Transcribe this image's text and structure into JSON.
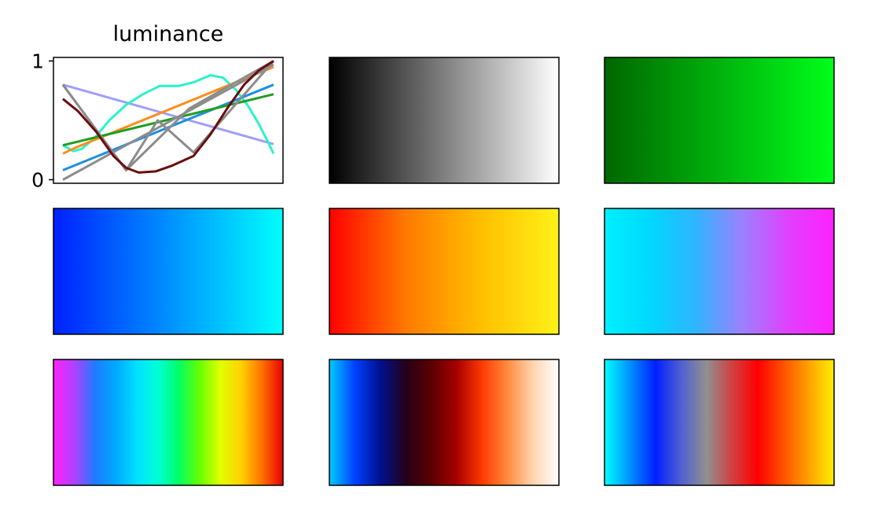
{
  "chart_data": [
    {
      "type": "line",
      "title": "luminance",
      "xlabel": "",
      "ylabel": "",
      "xlim": [
        0,
        1
      ],
      "ylim": [
        -0.03,
        1.03
      ],
      "yticks": [
        {
          "value": 0,
          "label": "0"
        },
        {
          "value": 1,
          "label": "1"
        }
      ],
      "xticks": [],
      "grid": false,
      "series": [
        {
          "color": "#9e9eff",
          "x": [
            0,
            1
          ],
          "y": [
            0.8,
            0.3
          ]
        },
        {
          "color": "#2bf2c8",
          "x": [
            0,
            0.05,
            0.09,
            0.15,
            0.22,
            0.3,
            0.38,
            0.46,
            0.5,
            0.55,
            0.62,
            0.7,
            0.76,
            0.82,
            0.88,
            0.93,
            0.97,
            1.0
          ],
          "y": [
            0.29,
            0.24,
            0.26,
            0.35,
            0.5,
            0.63,
            0.72,
            0.79,
            0.79,
            0.79,
            0.82,
            0.88,
            0.86,
            0.76,
            0.62,
            0.47,
            0.33,
            0.22
          ]
        },
        {
          "color": "#ff8c1a",
          "x": [
            0,
            0.06,
            1.0
          ],
          "y": [
            0.22,
            0.27,
            0.95
          ]
        },
        {
          "color": "#1a8fe6",
          "x": [
            0,
            1.0
          ],
          "y": [
            0.08,
            0.8
          ]
        },
        {
          "color": "#1f9e1f",
          "x": [
            0,
            1.0
          ],
          "y": [
            0.29,
            0.72
          ]
        },
        {
          "color": "#8c8c8c",
          "x": [
            0,
            0.3,
            0.6,
            1.0
          ],
          "y": [
            0.8,
            0.08,
            0.6,
            1.0
          ]
        },
        {
          "color": "#8c8c8c",
          "x": [
            0,
            0.3,
            0.45,
            0.62,
            1.0
          ],
          "y": [
            0.8,
            0.08,
            0.5,
            0.23,
            1.0
          ]
        },
        {
          "color": "#8c8c8c",
          "x": [
            0,
            1.0
          ],
          "y": [
            0.0,
            0.97
          ]
        },
        {
          "color": "#6b0d0d",
          "x": [
            0,
            0.07,
            0.16,
            0.24,
            0.3,
            0.36,
            0.44,
            0.52,
            0.62,
            0.7,
            0.78,
            0.86,
            0.93,
            1.0
          ],
          "y": [
            0.68,
            0.58,
            0.4,
            0.2,
            0.1,
            0.06,
            0.07,
            0.12,
            0.2,
            0.38,
            0.6,
            0.8,
            0.92,
            1.0
          ]
        }
      ]
    },
    {
      "type": "heatmap",
      "gradient": [
        "#000000",
        "#ffffff"
      ]
    },
    {
      "type": "heatmap",
      "gradient": [
        "#006600",
        "#00ff1a"
      ]
    },
    {
      "type": "heatmap",
      "gradient": [
        "#0020ff",
        "#0090ff",
        "#00ffff"
      ]
    },
    {
      "type": "heatmap",
      "gradient": [
        "#ff0000",
        "#ff7a00",
        "#ffc000",
        "#fff218"
      ]
    },
    {
      "type": "heatmap",
      "gradient": [
        "#00f0ff",
        "#00d8ff",
        "#30b4ff",
        "#9c80ff",
        "#e040ff",
        "#ff20ff"
      ]
    },
    {
      "type": "heatmap",
      "gradient": [
        "#ff22ff",
        "#b040ff",
        "#1e7bff",
        "#00aaff",
        "#00e0ff",
        "#00ffd8",
        "#00ff66",
        "#66ff00",
        "#e0ff00",
        "#ffd000",
        "#ff7000",
        "#e80000"
      ]
    },
    {
      "type": "heatmap",
      "gradient": [
        "#00ccff",
        "#0040ff",
        "#001090",
        "#250018",
        "#5a0000",
        "#a80000",
        "#ff3a00",
        "#ff8c40",
        "#ffd5b0",
        "#ffffff"
      ]
    },
    {
      "type": "heatmap",
      "gradient": [
        "#00ffff",
        "#0090ff",
        "#0020ff",
        "#5060d0",
        "#909090",
        "#d04040",
        "#ff0000",
        "#ff5000",
        "#ffa000",
        "#ffee00"
      ]
    }
  ]
}
